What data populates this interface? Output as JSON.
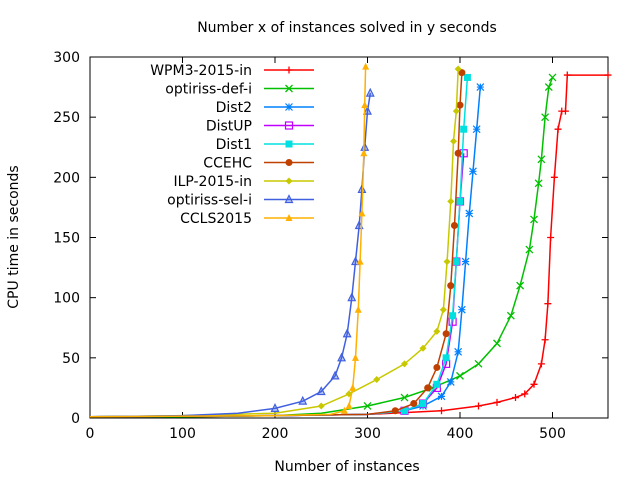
{
  "chart_data": {
    "type": "line",
    "title": "Number x of instances solved in y seconds",
    "xlabel": "Number of instances",
    "ylabel": "CPU time in seconds",
    "xlim": [
      0,
      560
    ],
    "ylim": [
      0,
      300
    ],
    "xticks": [
      0,
      100,
      200,
      300,
      400,
      500
    ],
    "yticks": [
      0,
      50,
      100,
      150,
      200,
      250,
      300
    ],
    "legend_position": "top-left",
    "grid": false,
    "series": [
      {
        "name": "WPM3-2015-in",
        "color": "#ff0000",
        "marker": "plus",
        "points": [
          [
            0,
            1
          ],
          [
            100,
            1
          ],
          [
            200,
            2
          ],
          [
            300,
            3
          ],
          [
            380,
            6
          ],
          [
            420,
            10
          ],
          [
            440,
            13
          ],
          [
            460,
            17
          ],
          [
            470,
            20
          ],
          [
            480,
            28
          ],
          [
            488,
            45
          ],
          [
            492,
            65
          ],
          [
            495,
            95
          ],
          [
            498,
            150
          ],
          [
            502,
            200
          ],
          [
            506,
            240
          ],
          [
            510,
            255
          ],
          [
            514,
            255
          ],
          [
            516,
            285
          ],
          [
            560,
            285
          ]
        ]
      },
      {
        "name": "optiriss-def-i",
        "color": "#00c000",
        "marker": "x",
        "points": [
          [
            0,
            1
          ],
          [
            100,
            1
          ],
          [
            200,
            2
          ],
          [
            250,
            4
          ],
          [
            300,
            10
          ],
          [
            340,
            17
          ],
          [
            370,
            25
          ],
          [
            400,
            35
          ],
          [
            420,
            45
          ],
          [
            440,
            62
          ],
          [
            455,
            85
          ],
          [
            465,
            110
          ],
          [
            475,
            140
          ],
          [
            480,
            165
          ],
          [
            485,
            195
          ],
          [
            488,
            215
          ],
          [
            492,
            250
          ],
          [
            496,
            275
          ],
          [
            500,
            283
          ]
        ]
      },
      {
        "name": "Dist2",
        "color": "#0080ff",
        "marker": "star",
        "points": [
          [
            0,
            1
          ],
          [
            200,
            2
          ],
          [
            300,
            3
          ],
          [
            340,
            6
          ],
          [
            360,
            10
          ],
          [
            380,
            18
          ],
          [
            390,
            30
          ],
          [
            398,
            55
          ],
          [
            402,
            90
          ],
          [
            406,
            130
          ],
          [
            410,
            170
          ],
          [
            414,
            205
          ],
          [
            418,
            240
          ],
          [
            422,
            275
          ]
        ]
      },
      {
        "name": "DistUP",
        "color": "#c000ff",
        "marker": "square",
        "points": [
          [
            0,
            1
          ],
          [
            200,
            2
          ],
          [
            300,
            3
          ],
          [
            340,
            6
          ],
          [
            360,
            12
          ],
          [
            375,
            25
          ],
          [
            385,
            45
          ],
          [
            392,
            80
          ],
          [
            396,
            130
          ],
          [
            400,
            180
          ],
          [
            404,
            220
          ]
        ]
      },
      {
        "name": "Dist1",
        "color": "#00e0e0",
        "marker": "filled-square",
        "points": [
          [
            0,
            1
          ],
          [
            200,
            2
          ],
          [
            300,
            3
          ],
          [
            340,
            6
          ],
          [
            360,
            12
          ],
          [
            375,
            28
          ],
          [
            385,
            50
          ],
          [
            392,
            85
          ],
          [
            396,
            130
          ],
          [
            400,
            180
          ],
          [
            404,
            240
          ],
          [
            408,
            283
          ]
        ]
      },
      {
        "name": "CCEHC",
        "color": "#c04000",
        "marker": "filled-circle",
        "points": [
          [
            0,
            1
          ],
          [
            200,
            2
          ],
          [
            300,
            3
          ],
          [
            330,
            6
          ],
          [
            350,
            12
          ],
          [
            365,
            25
          ],
          [
            375,
            42
          ],
          [
            385,
            70
          ],
          [
            390,
            110
          ],
          [
            394,
            160
          ],
          [
            398,
            220
          ],
          [
            400,
            260
          ],
          [
            402,
            287
          ]
        ]
      },
      {
        "name": "ILP-2015-in",
        "color": "#c8c800",
        "marker": "filled-diamond",
        "points": [
          [
            0,
            1
          ],
          [
            100,
            2
          ],
          [
            200,
            4
          ],
          [
            250,
            10
          ],
          [
            280,
            20
          ],
          [
            310,
            32
          ],
          [
            340,
            45
          ],
          [
            360,
            58
          ],
          [
            375,
            72
          ],
          [
            382,
            90
          ],
          [
            386,
            130
          ],
          [
            390,
            180
          ],
          [
            393,
            230
          ],
          [
            396,
            255
          ],
          [
            398,
            290
          ]
        ]
      },
      {
        "name": "optiriss-sel-i",
        "color": "#4060e0",
        "marker": "triangle",
        "points": [
          [
            0,
            1
          ],
          [
            100,
            2
          ],
          [
            160,
            4
          ],
          [
            200,
            8
          ],
          [
            230,
            14
          ],
          [
            250,
            22
          ],
          [
            265,
            35
          ],
          [
            272,
            50
          ],
          [
            278,
            70
          ],
          [
            283,
            100
          ],
          [
            287,
            130
          ],
          [
            291,
            160
          ],
          [
            294,
            190
          ],
          [
            297,
            225
          ],
          [
            300,
            255
          ],
          [
            303,
            270
          ]
        ]
      },
      {
        "name": "CCLS2015",
        "color": "#ffb000",
        "marker": "filled-triangle",
        "points": [
          [
            0,
            1
          ],
          [
            200,
            2
          ],
          [
            260,
            3
          ],
          [
            275,
            6
          ],
          [
            280,
            10
          ],
          [
            284,
            25
          ],
          [
            287,
            50
          ],
          [
            290,
            90
          ],
          [
            292,
            130
          ],
          [
            294,
            170
          ],
          [
            296,
            220
          ],
          [
            297,
            260
          ],
          [
            298,
            292
          ]
        ]
      }
    ]
  }
}
